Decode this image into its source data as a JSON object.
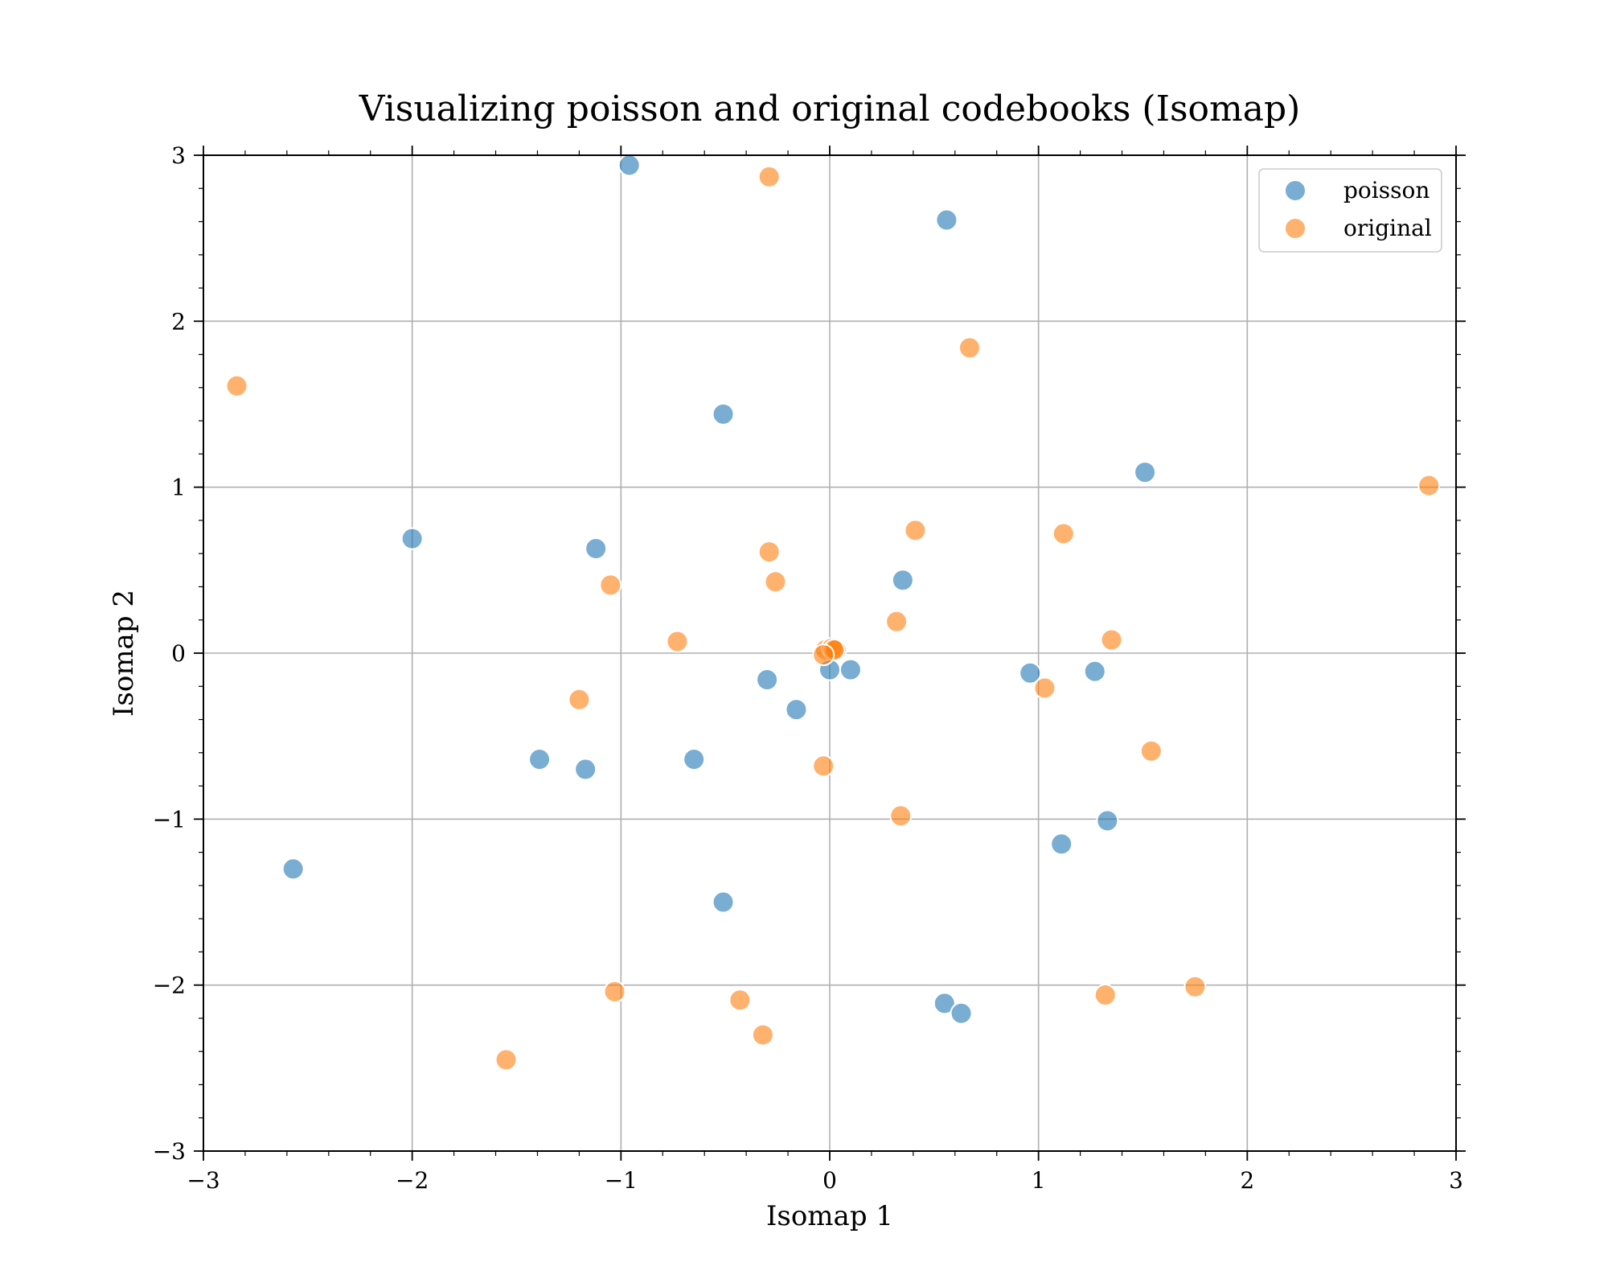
{
  "chart_data": {
    "type": "scatter",
    "title": "Visualizing poisson and original codebooks (Isomap)",
    "xlabel": "Isomap 1",
    "ylabel": "Isomap 2",
    "xlim": [
      -3,
      3
    ],
    "ylim": [
      -3,
      3
    ],
    "x_ticks": [
      -3,
      -2,
      -1,
      0,
      1,
      2,
      3
    ],
    "y_ticks": [
      -3,
      -2,
      -1,
      0,
      1,
      2,
      3
    ],
    "x_tick_labels": [
      "−3",
      "−2",
      "−1",
      "0",
      "1",
      "2",
      "3"
    ],
    "y_tick_labels": [
      "−3",
      "−2",
      "−1",
      "0",
      "1",
      "2",
      "3"
    ],
    "grid": true,
    "legend_position": "top-right",
    "series": [
      {
        "name": "poisson",
        "color": "#1f77b4",
        "points": [
          [
            -0.96,
            2.94
          ],
          [
            0.56,
            2.61
          ],
          [
            -0.51,
            1.44
          ],
          [
            1.51,
            1.09
          ],
          [
            -2.0,
            0.69
          ],
          [
            -1.12,
            0.63
          ],
          [
            0.35,
            0.44
          ],
          [
            -0.3,
            -0.16
          ],
          [
            -0.16,
            -0.34
          ],
          [
            0.0,
            -0.1
          ],
          [
            0.1,
            -0.1
          ],
          [
            0.96,
            -0.12
          ],
          [
            1.27,
            -0.11
          ],
          [
            -1.39,
            -0.64
          ],
          [
            -1.17,
            -0.7
          ],
          [
            -0.65,
            -0.64
          ],
          [
            1.33,
            -1.01
          ],
          [
            1.11,
            -1.15
          ],
          [
            -2.57,
            -1.3
          ],
          [
            -0.51,
            -1.5
          ],
          [
            0.55,
            -2.11
          ],
          [
            0.63,
            -2.17
          ]
        ]
      },
      {
        "name": "original",
        "color": "#ff7f0e",
        "points": [
          [
            -0.29,
            2.87
          ],
          [
            -2.84,
            1.61
          ],
          [
            0.67,
            1.84
          ],
          [
            2.87,
            1.01
          ],
          [
            0.41,
            0.74
          ],
          [
            1.12,
            0.72
          ],
          [
            -0.29,
            0.61
          ],
          [
            -0.26,
            0.43
          ],
          [
            -1.05,
            0.41
          ],
          [
            -0.73,
            0.07
          ],
          [
            0.32,
            0.19
          ],
          [
            1.35,
            0.08
          ],
          [
            -0.02,
            0.02
          ],
          [
            0.01,
            0.03
          ],
          [
            0.03,
            0.02
          ],
          [
            0.02,
            0.02
          ],
          [
            -0.03,
            -0.01
          ],
          [
            1.03,
            -0.21
          ],
          [
            -1.2,
            -0.28
          ],
          [
            1.54,
            -0.59
          ],
          [
            -0.03,
            -0.68
          ],
          [
            0.34,
            -0.98
          ],
          [
            -1.03,
            -2.04
          ],
          [
            -0.43,
            -2.09
          ],
          [
            1.75,
            -2.01
          ],
          [
            1.32,
            -2.06
          ],
          [
            -0.32,
            -2.3
          ],
          [
            -1.55,
            -2.45
          ]
        ]
      }
    ]
  }
}
